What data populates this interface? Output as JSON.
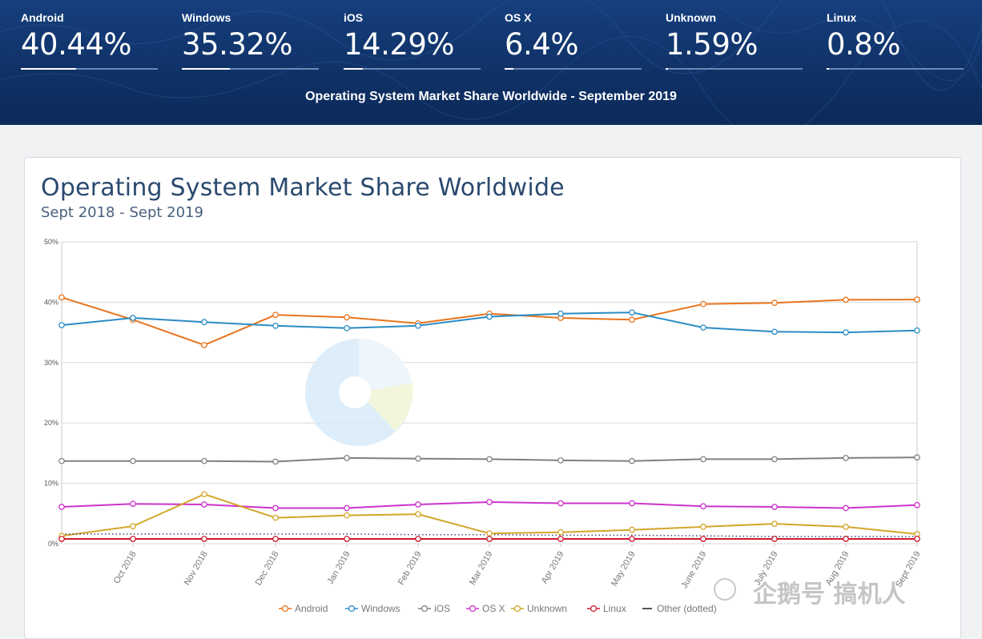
{
  "header": {
    "stats": [
      {
        "name": "Android",
        "value": "40.44%",
        "share": 40.44
      },
      {
        "name": "Windows",
        "value": "35.32%",
        "share": 35.32
      },
      {
        "name": "iOS",
        "value": "14.29%",
        "share": 14.29
      },
      {
        "name": "OS X",
        "value": "6.4%",
        "share": 6.4
      },
      {
        "name": "Unknown",
        "value": "1.59%",
        "share": 1.59
      },
      {
        "name": "Linux",
        "value": "0.8%",
        "share": 0.8
      }
    ],
    "caption": "Operating System Market Share Worldwide - September 2019"
  },
  "watermark": "企鹅号 搞机人",
  "chart_data": {
    "type": "line",
    "title": "Operating System Market Share Worldwide",
    "subtitle": "Sept 2018 - Sept 2019",
    "x": [
      "Sept 2018",
      "Oct 2018",
      "Nov 2018",
      "Dec 2018",
      "Jan 2019",
      "Feb 2019",
      "Mar 2019",
      "Apr 2019",
      "May 2019",
      "June 2019",
      "July 2019",
      "Aug 2019",
      "Sept 2019"
    ],
    "xtick_labels": [
      "",
      "Oct 2018",
      "Nov 2018",
      "Dec 2018",
      "Jan 2019",
      "Feb 2019",
      "Mar 2019",
      "Apr 2019",
      "May 2019",
      "June 2019",
      "July 2019",
      "Aug 2019",
      "Sept 2019"
    ],
    "ylim": [
      0,
      50
    ],
    "yticks": [
      0,
      10,
      20,
      30,
      40,
      50
    ],
    "ytick_labels": [
      "0%",
      "10%",
      "20%",
      "30%",
      "40%",
      "50%"
    ],
    "grid": true,
    "legend_position": "bottom",
    "series": [
      {
        "name": "Android",
        "color": "#e8741e",
        "marker": true,
        "values": [
          40.8,
          37.1,
          32.9,
          37.9,
          37.5,
          36.5,
          38.1,
          37.4,
          37.1,
          39.7,
          39.9,
          40.4,
          40.44
        ]
      },
      {
        "name": "Windows",
        "color": "#2b8cc4",
        "marker": true,
        "values": [
          36.2,
          37.4,
          36.7,
          36.1,
          35.7,
          36.1,
          37.6,
          38.1,
          38.3,
          35.8,
          35.1,
          35.0,
          35.32
        ]
      },
      {
        "name": "iOS",
        "color": "#808080",
        "marker": true,
        "values": [
          13.7,
          13.7,
          13.7,
          13.6,
          14.2,
          14.1,
          14.0,
          13.8,
          13.7,
          14.0,
          14.0,
          14.2,
          14.29
        ]
      },
      {
        "name": "OS X",
        "color": "#cc33cc",
        "marker": true,
        "values": [
          6.1,
          6.6,
          6.5,
          5.9,
          5.9,
          6.5,
          6.9,
          6.7,
          6.7,
          6.2,
          6.1,
          5.9,
          6.4
        ]
      },
      {
        "name": "Unknown",
        "color": "#d4a62a",
        "marker": true,
        "values": [
          1.3,
          2.9,
          8.2,
          4.3,
          4.7,
          4.9,
          1.7,
          1.9,
          2.3,
          2.8,
          3.3,
          2.8,
          1.59
        ]
      },
      {
        "name": "Linux",
        "color": "#cc1a2e",
        "marker": true,
        "values": [
          0.8,
          0.8,
          0.8,
          0.8,
          0.8,
          0.8,
          0.8,
          0.8,
          0.8,
          0.8,
          0.8,
          0.8,
          0.8
        ]
      },
      {
        "name": "Other (dotted)",
        "color": "#3a4a7a",
        "marker": false,
        "dotted": true,
        "values": [
          1.6,
          1.6,
          1.6,
          1.6,
          1.6,
          1.5,
          1.5,
          1.4,
          1.4,
          1.3,
          1.2,
          1.2,
          1.2
        ]
      }
    ]
  }
}
